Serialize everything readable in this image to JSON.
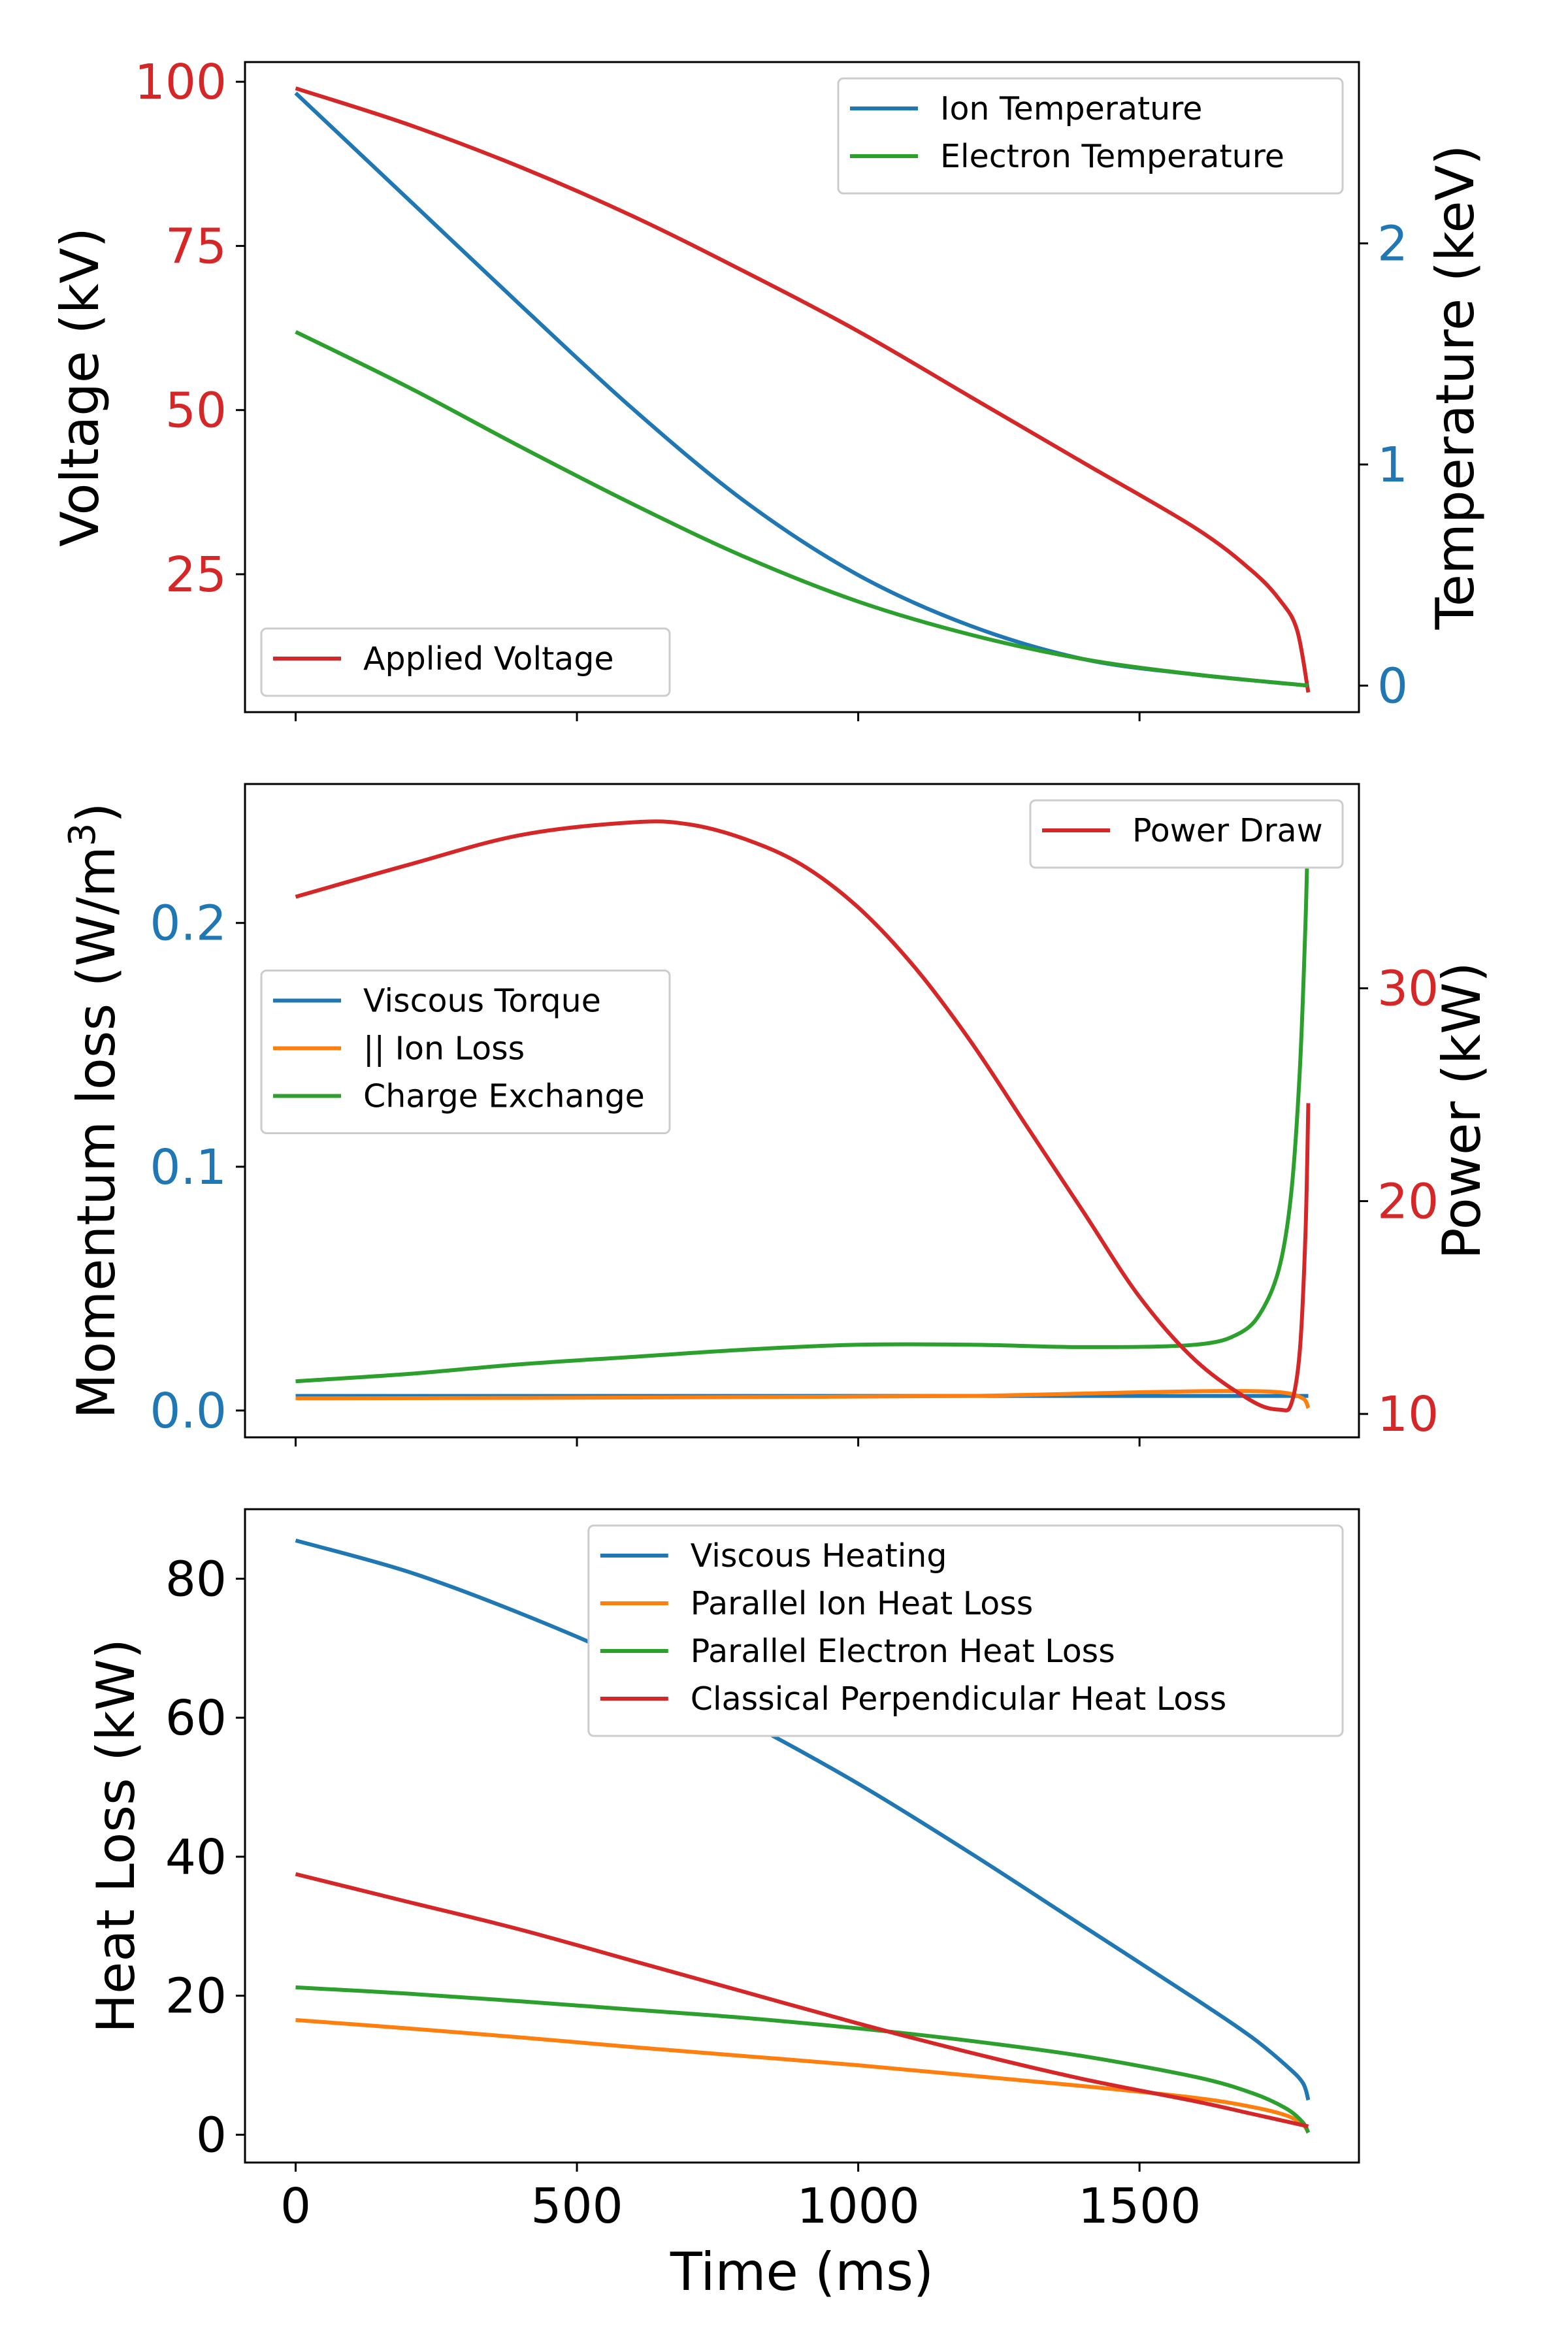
{
  "colors": {
    "blue": "#1f77b4",
    "orange": "#ff7f0e",
    "green": "#2ca02c",
    "red": "#d62728",
    "black": "#000000"
  },
  "chart_data": [
    {
      "type": "line",
      "title": "",
      "xlabel": "",
      "xlim": [
        -90,
        1890
      ],
      "xticks": [
        0,
        500,
        1000,
        1500
      ],
      "xtick_labels_visible": false,
      "ylabel_left": "Voltage (kV)",
      "ylabel_left_color": "#d62728",
      "ylim_left": [
        4,
        103
      ],
      "yticks_left": [
        25,
        50,
        75,
        100
      ],
      "ylabel_right": "Temperature (keV)",
      "ylabel_right_color": "#1f77b4",
      "ylim_right": [
        -0.12,
        2.82
      ],
      "yticks_right": [
        0,
        1,
        2
      ],
      "legends": [
        {
          "placement": "upper right",
          "entries": [
            "Ion Temperature",
            "Electron Temperature"
          ]
        },
        {
          "placement": "lower left",
          "entries": [
            "Applied Voltage"
          ]
        }
      ],
      "series": [
        {
          "name": "Applied Voltage",
          "axis": "left",
          "color": "#d62728",
          "x": [
            0,
            200,
            400,
            600,
            800,
            1000,
            1200,
            1400,
            1600,
            1700,
            1750,
            1780,
            1800
          ],
          "y": [
            99,
            93.5,
            87,
            79.5,
            71,
            62,
            52,
            42,
            32,
            25.5,
            21,
            16.5,
            7
          ]
        },
        {
          "name": "Ion Temperature",
          "axis": "right",
          "color": "#1f77b4",
          "x": [
            0,
            200,
            400,
            600,
            800,
            1000,
            1200,
            1400,
            1600,
            1800
          ],
          "y": [
            2.68,
            2.2,
            1.72,
            1.25,
            0.83,
            0.5,
            0.27,
            0.12,
            0.05,
            0.0
          ]
        },
        {
          "name": "Electron Temperature",
          "axis": "right",
          "color": "#2ca02c",
          "x": [
            0,
            200,
            400,
            600,
            800,
            1000,
            1200,
            1400,
            1600,
            1800
          ],
          "y": [
            1.6,
            1.35,
            1.08,
            0.82,
            0.58,
            0.38,
            0.23,
            0.12,
            0.05,
            0.0
          ]
        }
      ]
    },
    {
      "type": "line",
      "title": "",
      "xlabel": "",
      "xlim": [
        -90,
        1890
      ],
      "xticks": [
        0,
        500,
        1000,
        1500
      ],
      "xtick_labels_visible": false,
      "ylabel_left": "Momentum loss (W/m³)",
      "ylabel_left_text": "Momentum loss (W/m",
      "ylabel_left_sup": "3",
      "ylabel_left_close": ")",
      "ylabel_left_color": "#1f77b4",
      "ylim_left": [
        -0.011,
        0.257
      ],
      "yticks_left": [
        0.0,
        0.1,
        0.2
      ],
      "ylabel_right": "Power (kW)",
      "ylabel_right_color": "#d62728",
      "ylim_right": [
        8.9,
        39.6
      ],
      "yticks_right": [
        10,
        20,
        30
      ],
      "legends": [
        {
          "placement": "upper right",
          "entries": [
            "Power Draw"
          ]
        },
        {
          "placement": "center left",
          "entries": [
            "Viscous Torque",
            "|| Ion Loss",
            "Charge Exchange"
          ]
        }
      ],
      "series": [
        {
          "name": "Viscous Torque",
          "axis": "left",
          "color": "#1f77b4",
          "x": [
            0,
            400,
            800,
            1200,
            1600,
            1800
          ],
          "y": [
            0.006,
            0.006,
            0.006,
            0.006,
            0.006,
            0.006
          ]
        },
        {
          "name": "|| Ion Loss",
          "axis": "left",
          "color": "#ff7f0e",
          "x": [
            0,
            400,
            800,
            1200,
            1500,
            1650,
            1750,
            1790,
            1800
          ],
          "y": [
            0.005,
            0.0052,
            0.0055,
            0.006,
            0.0075,
            0.008,
            0.0075,
            0.005,
            0.001
          ]
        },
        {
          "name": "Charge Exchange",
          "axis": "left",
          "color": "#2ca02c",
          "x": [
            0,
            200,
            400,
            600,
            800,
            1000,
            1200,
            1400,
            1600,
            1680,
            1720,
            1750,
            1770,
            1785,
            1795,
            1800
          ],
          "y": [
            0.012,
            0.015,
            0.019,
            0.022,
            0.025,
            0.027,
            0.027,
            0.026,
            0.027,
            0.032,
            0.042,
            0.06,
            0.09,
            0.14,
            0.2,
            0.244
          ]
        },
        {
          "name": "Power Draw",
          "axis": "right",
          "color": "#d62728",
          "x": [
            0,
            200,
            400,
            600,
            700,
            800,
            900,
            1000,
            1100,
            1200,
            1300,
            1400,
            1500,
            1600,
            1700,
            1750,
            1770,
            1785,
            1795,
            1800
          ],
          "y": [
            34.3,
            35.8,
            37.2,
            37.8,
            37.7,
            37.0,
            35.8,
            33.8,
            31.0,
            27.5,
            23.5,
            19.5,
            15.5,
            12.5,
            10.6,
            10.2,
            10.5,
            13.0,
            18.5,
            24.6
          ]
        }
      ]
    },
    {
      "type": "line",
      "title": "",
      "xlabel": "Time (ms)",
      "xlim": [
        -90,
        1890
      ],
      "xticks": [
        0,
        500,
        1000,
        1500
      ],
      "xtick_labels_visible": true,
      "ylabel_left": "Heat Loss (kW)",
      "ylabel_left_color": "#000000",
      "ylim_left": [
        -4,
        90
      ],
      "yticks_left": [
        0,
        20,
        40,
        60,
        80
      ],
      "legends": [
        {
          "placement": "upper right",
          "entries": [
            "Viscous Heating",
            "Parallel Ion Heat Loss",
            "Parallel Electron Heat Loss",
            "Classical Perpendicular Heat Loss"
          ]
        }
      ],
      "series": [
        {
          "name": "Viscous Heating",
          "axis": "left",
          "color": "#1f77b4",
          "x": [
            0,
            200,
            400,
            600,
            800,
            1000,
            1200,
            1400,
            1600,
            1700,
            1760,
            1790,
            1800
          ],
          "y": [
            85.5,
            81,
            75,
            68,
            59.5,
            50.5,
            40.5,
            30,
            19.5,
            14,
            10,
            7.5,
            5
          ]
        },
        {
          "name": "Parallel Ion Heat Loss",
          "axis": "left",
          "color": "#ff7f0e",
          "x": [
            0,
            200,
            400,
            600,
            800,
            1000,
            1200,
            1400,
            1600,
            1700,
            1760,
            1790,
            1800
          ],
          "y": [
            16.5,
            15.3,
            14,
            12.6,
            11.3,
            10,
            8.5,
            7,
            5.3,
            4,
            2.8,
            1.5,
            0.3
          ]
        },
        {
          "name": "Parallel Electron Heat Loss",
          "axis": "left",
          "color": "#2ca02c",
          "x": [
            0,
            200,
            400,
            600,
            800,
            1000,
            1200,
            1400,
            1600,
            1700,
            1760,
            1790,
            1800
          ],
          "y": [
            21.2,
            20.3,
            19.2,
            18,
            16.8,
            15.3,
            13.5,
            11.3,
            8.3,
            6,
            3.8,
            1.8,
            0.3
          ]
        },
        {
          "name": "Classical Perpendicular Heat Loss",
          "axis": "left",
          "color": "#d62728",
          "x": [
            0,
            200,
            400,
            600,
            800,
            1000,
            1200,
            1400,
            1600,
            1700,
            1800
          ],
          "y": [
            37.5,
            33.5,
            29.5,
            25,
            20.5,
            16,
            11.8,
            8,
            4.8,
            3,
            1.2
          ]
        }
      ]
    }
  ]
}
